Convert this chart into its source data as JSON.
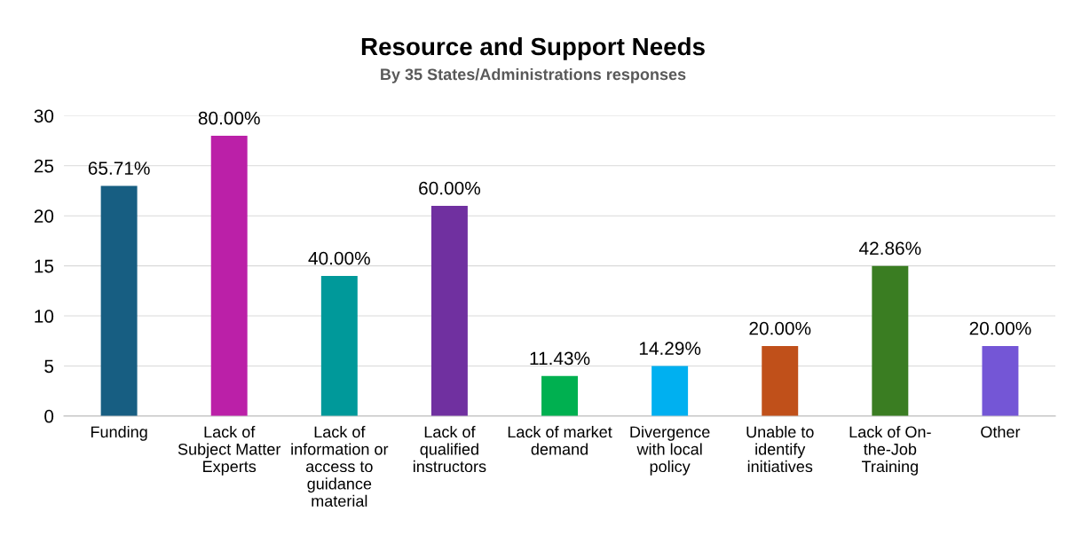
{
  "chart_data": {
    "type": "bar",
    "title": "Resource and Support Needs",
    "subtitle": "By 35 States/Administrations responses",
    "categories": [
      "Funding",
      "Lack of Subject Matter Experts",
      "Lack of information or access to guidance material",
      "Lack of qualified instructors",
      "Lack of market demand",
      "Divergence with local policy",
      "Unable to identify initiatives",
      "Lack of On-the-Job Training",
      "Other"
    ],
    "values": [
      23,
      28,
      14,
      21,
      4,
      5,
      7,
      15,
      7
    ],
    "colors": [
      "#175e82",
      "#bb20a8",
      "#00999a",
      "#7030a0",
      "#00b050",
      "#00b0f0",
      "#c0501a",
      "#3a7d22",
      "#7456d6"
    ],
    "annotations": [
      {
        "text": "65.71%",
        "x": "Funding",
        "y": 23
      },
      {
        "text": "80.00%",
        "x": "Lack of Subject Matter Experts",
        "y": 28
      },
      {
        "text": "40.00%",
        "x": "Lack of information or access to guidance material",
        "y": 14
      },
      {
        "text": "60.00%",
        "x": "Lack of qualified instructors",
        "y": 21
      },
      {
        "text": "11.43%",
        "x": "Lack of market demand",
        "y": 4
      },
      {
        "text": "14.29%",
        "x": "Divergence with local policy",
        "y": 5
      },
      {
        "text": "20.00%",
        "x": "Unable to identify initiatives",
        "y": 7
      },
      {
        "text": "42.86%",
        "x": "Lack of On-the-Job Training",
        "y": 15
      },
      {
        "text": "20.00%",
        "x": "Other",
        "y": 7
      }
    ],
    "ylim": [
      0,
      30
    ],
    "yticks": [
      0,
      5,
      10,
      15,
      20,
      25,
      30
    ],
    "grid": "y",
    "legend": false
  }
}
